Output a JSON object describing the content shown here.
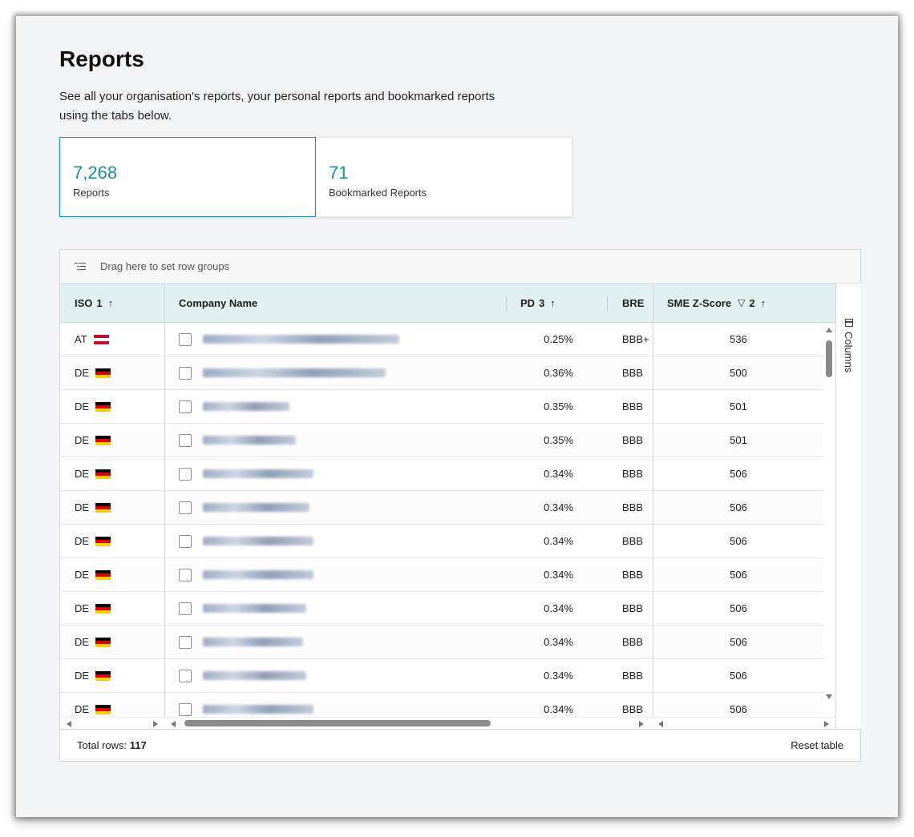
{
  "page": {
    "title": "Reports",
    "description": "See all your organisation's reports, your personal reports and bookmarked reports using the tabs below."
  },
  "tabs": [
    {
      "count": "7,268",
      "label": "Reports",
      "active": true
    },
    {
      "count": "71",
      "label": "Bookmarked Reports",
      "active": false
    }
  ],
  "grid": {
    "group_bar_text": "Drag here to set row groups",
    "columns": {
      "iso": {
        "label": "ISO",
        "sort_index": "1",
        "sort": "↑"
      },
      "company": {
        "label": "Company Name"
      },
      "pd": {
        "label": "PD",
        "sort_index": "3",
        "sort": "↑"
      },
      "bre": {
        "label": "BRE"
      },
      "zscore": {
        "label": "SME Z-Score",
        "filter_icon": "▽",
        "sort_index": "2",
        "sort": "↑"
      }
    },
    "side_panel": {
      "columns_label": "Columns"
    },
    "rows": [
      {
        "iso": "AT",
        "flag": "at",
        "pd": "0.25%",
        "bre": "BBB+",
        "z": "536",
        "name_width": 0.57
      },
      {
        "iso": "DE",
        "flag": "de",
        "pd": "0.36%",
        "bre": "BBB",
        "z": "500",
        "name_width": 0.53
      },
      {
        "iso": "DE",
        "flag": "de",
        "pd": "0.35%",
        "bre": "BBB",
        "z": "501",
        "name_width": 0.25
      },
      {
        "iso": "DE",
        "flag": "de",
        "pd": "0.35%",
        "bre": "BBB",
        "z": "501",
        "name_width": 0.27
      },
      {
        "iso": "DE",
        "flag": "de",
        "pd": "0.34%",
        "bre": "BBB",
        "z": "506",
        "name_width": 0.32
      },
      {
        "iso": "DE",
        "flag": "de",
        "pd": "0.34%",
        "bre": "BBB",
        "z": "506",
        "name_width": 0.31
      },
      {
        "iso": "DE",
        "flag": "de",
        "pd": "0.34%",
        "bre": "BBB",
        "z": "506",
        "name_width": 0.32
      },
      {
        "iso": "DE",
        "flag": "de",
        "pd": "0.34%",
        "bre": "BBB",
        "z": "506",
        "name_width": 0.32
      },
      {
        "iso": "DE",
        "flag": "de",
        "pd": "0.34%",
        "bre": "BBB",
        "z": "506",
        "name_width": 0.3
      },
      {
        "iso": "DE",
        "flag": "de",
        "pd": "0.34%",
        "bre": "BBB",
        "z": "506",
        "name_width": 0.29
      },
      {
        "iso": "DE",
        "flag": "de",
        "pd": "0.34%",
        "bre": "BBB",
        "z": "506",
        "name_width": 0.3
      },
      {
        "iso": "DE",
        "flag": "de",
        "pd": "0.34%",
        "bre": "BBB",
        "z": "506",
        "name_width": 0.32
      }
    ],
    "status": {
      "total_label": "Total rows:",
      "total_value": "117",
      "reset_label": "Reset table"
    }
  },
  "colors": {
    "accent": "#1b99a3",
    "header_bg": "#e3f0f2",
    "page_bg": "#f3f4f6"
  },
  "icons": [
    "row-group-icon",
    "sort-ascending-icon",
    "filter-icon",
    "columns-icon",
    "flag-at-icon",
    "flag-de-icon"
  ]
}
